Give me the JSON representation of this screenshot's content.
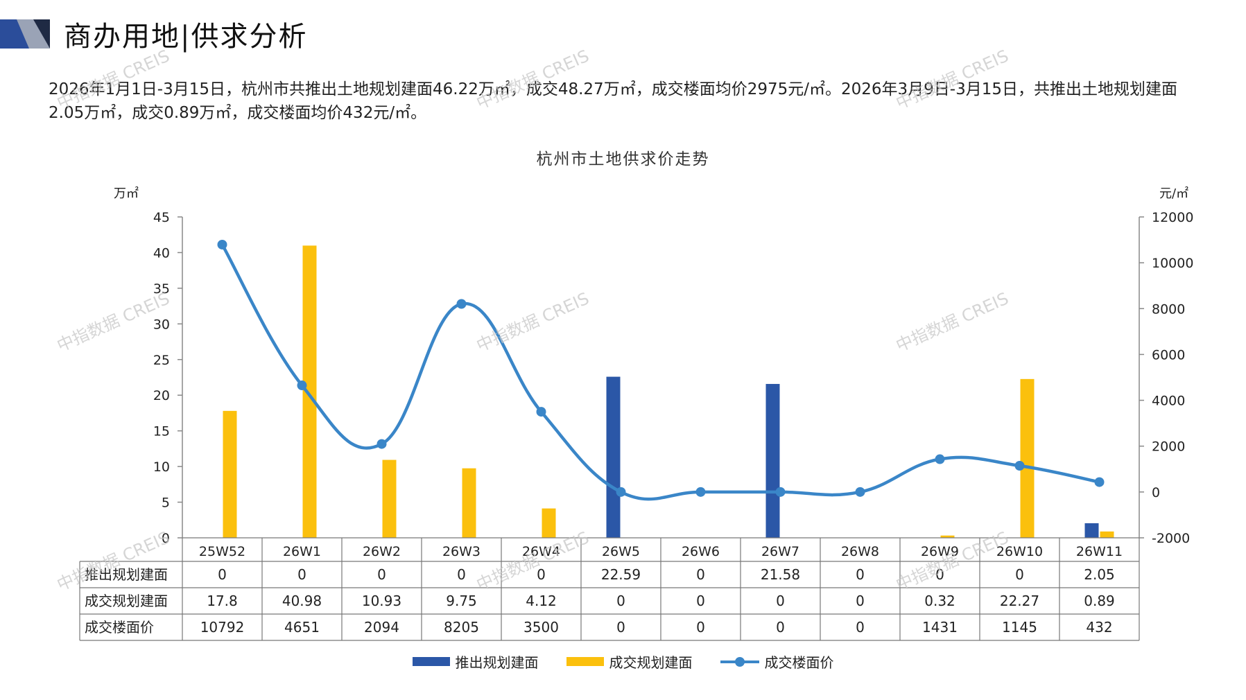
{
  "header": {
    "title": "商办用地|供求分析"
  },
  "summary": "2026年1月1日-3月15日，杭州市共推出土地规划建面46.22万㎡，成交48.27万㎡，成交楼面均价2975元/㎡。2026年3月9日-3月15日，共推出土地规划建面2.05万㎡，成交0.89万㎡，成交楼面均价432元/㎡。",
  "watermark": "中指数据 CREIS",
  "colors": {
    "supply": "#2b57a7",
    "deal": "#fbc00d",
    "price": "#3a86c8"
  },
  "chart_data": {
    "type": "bar",
    "title": "杭州市土地供求价走势",
    "left_unit": "万㎡",
    "right_unit": "元/㎡",
    "categories": [
      "25W52",
      "26W1",
      "26W2",
      "26W3",
      "26W4",
      "26W5",
      "26W6",
      "26W7",
      "26W8",
      "26W9",
      "26W10",
      "26W11"
    ],
    "y_left": {
      "min": 0,
      "max": 45,
      "ticks": [
        0,
        5,
        10,
        15,
        20,
        25,
        30,
        35,
        40,
        45
      ]
    },
    "y_right": {
      "min": -2000,
      "max": 12000,
      "ticks": [
        -2000,
        0,
        2000,
        4000,
        6000,
        8000,
        10000,
        12000
      ]
    },
    "series": [
      {
        "name": "推出规划建面",
        "kind": "bar",
        "axis": "left",
        "values": [
          0,
          0,
          0,
          0,
          0,
          22.59,
          0,
          21.58,
          0,
          0,
          0,
          2.05
        ],
        "display": [
          "0",
          "0",
          "0",
          "0",
          "0",
          "22.59",
          "0",
          "21.58",
          "0",
          "0",
          "0",
          "2.05"
        ]
      },
      {
        "name": "成交规划建面",
        "kind": "bar",
        "axis": "left",
        "values": [
          17.8,
          40.98,
          10.93,
          9.75,
          4.12,
          0,
          0,
          0,
          0,
          0.32,
          22.27,
          0.89
        ],
        "display": [
          "17.8",
          "40.98",
          "10.93",
          "9.75",
          "4.12",
          "0",
          "0",
          "0",
          "0",
          "0.32",
          "22.27",
          "0.89"
        ]
      },
      {
        "name": "成交楼面价",
        "kind": "line",
        "axis": "right",
        "values": [
          10792,
          4651,
          2094,
          8205,
          3500,
          0,
          0,
          0,
          0,
          1431,
          1145,
          432
        ],
        "display": [
          "10792",
          "4651",
          "2094",
          "8205",
          "3500",
          "0",
          "0",
          "0",
          "0",
          "1431",
          "1145",
          "432"
        ]
      }
    ],
    "legend_position": "bottom",
    "grid": false
  }
}
